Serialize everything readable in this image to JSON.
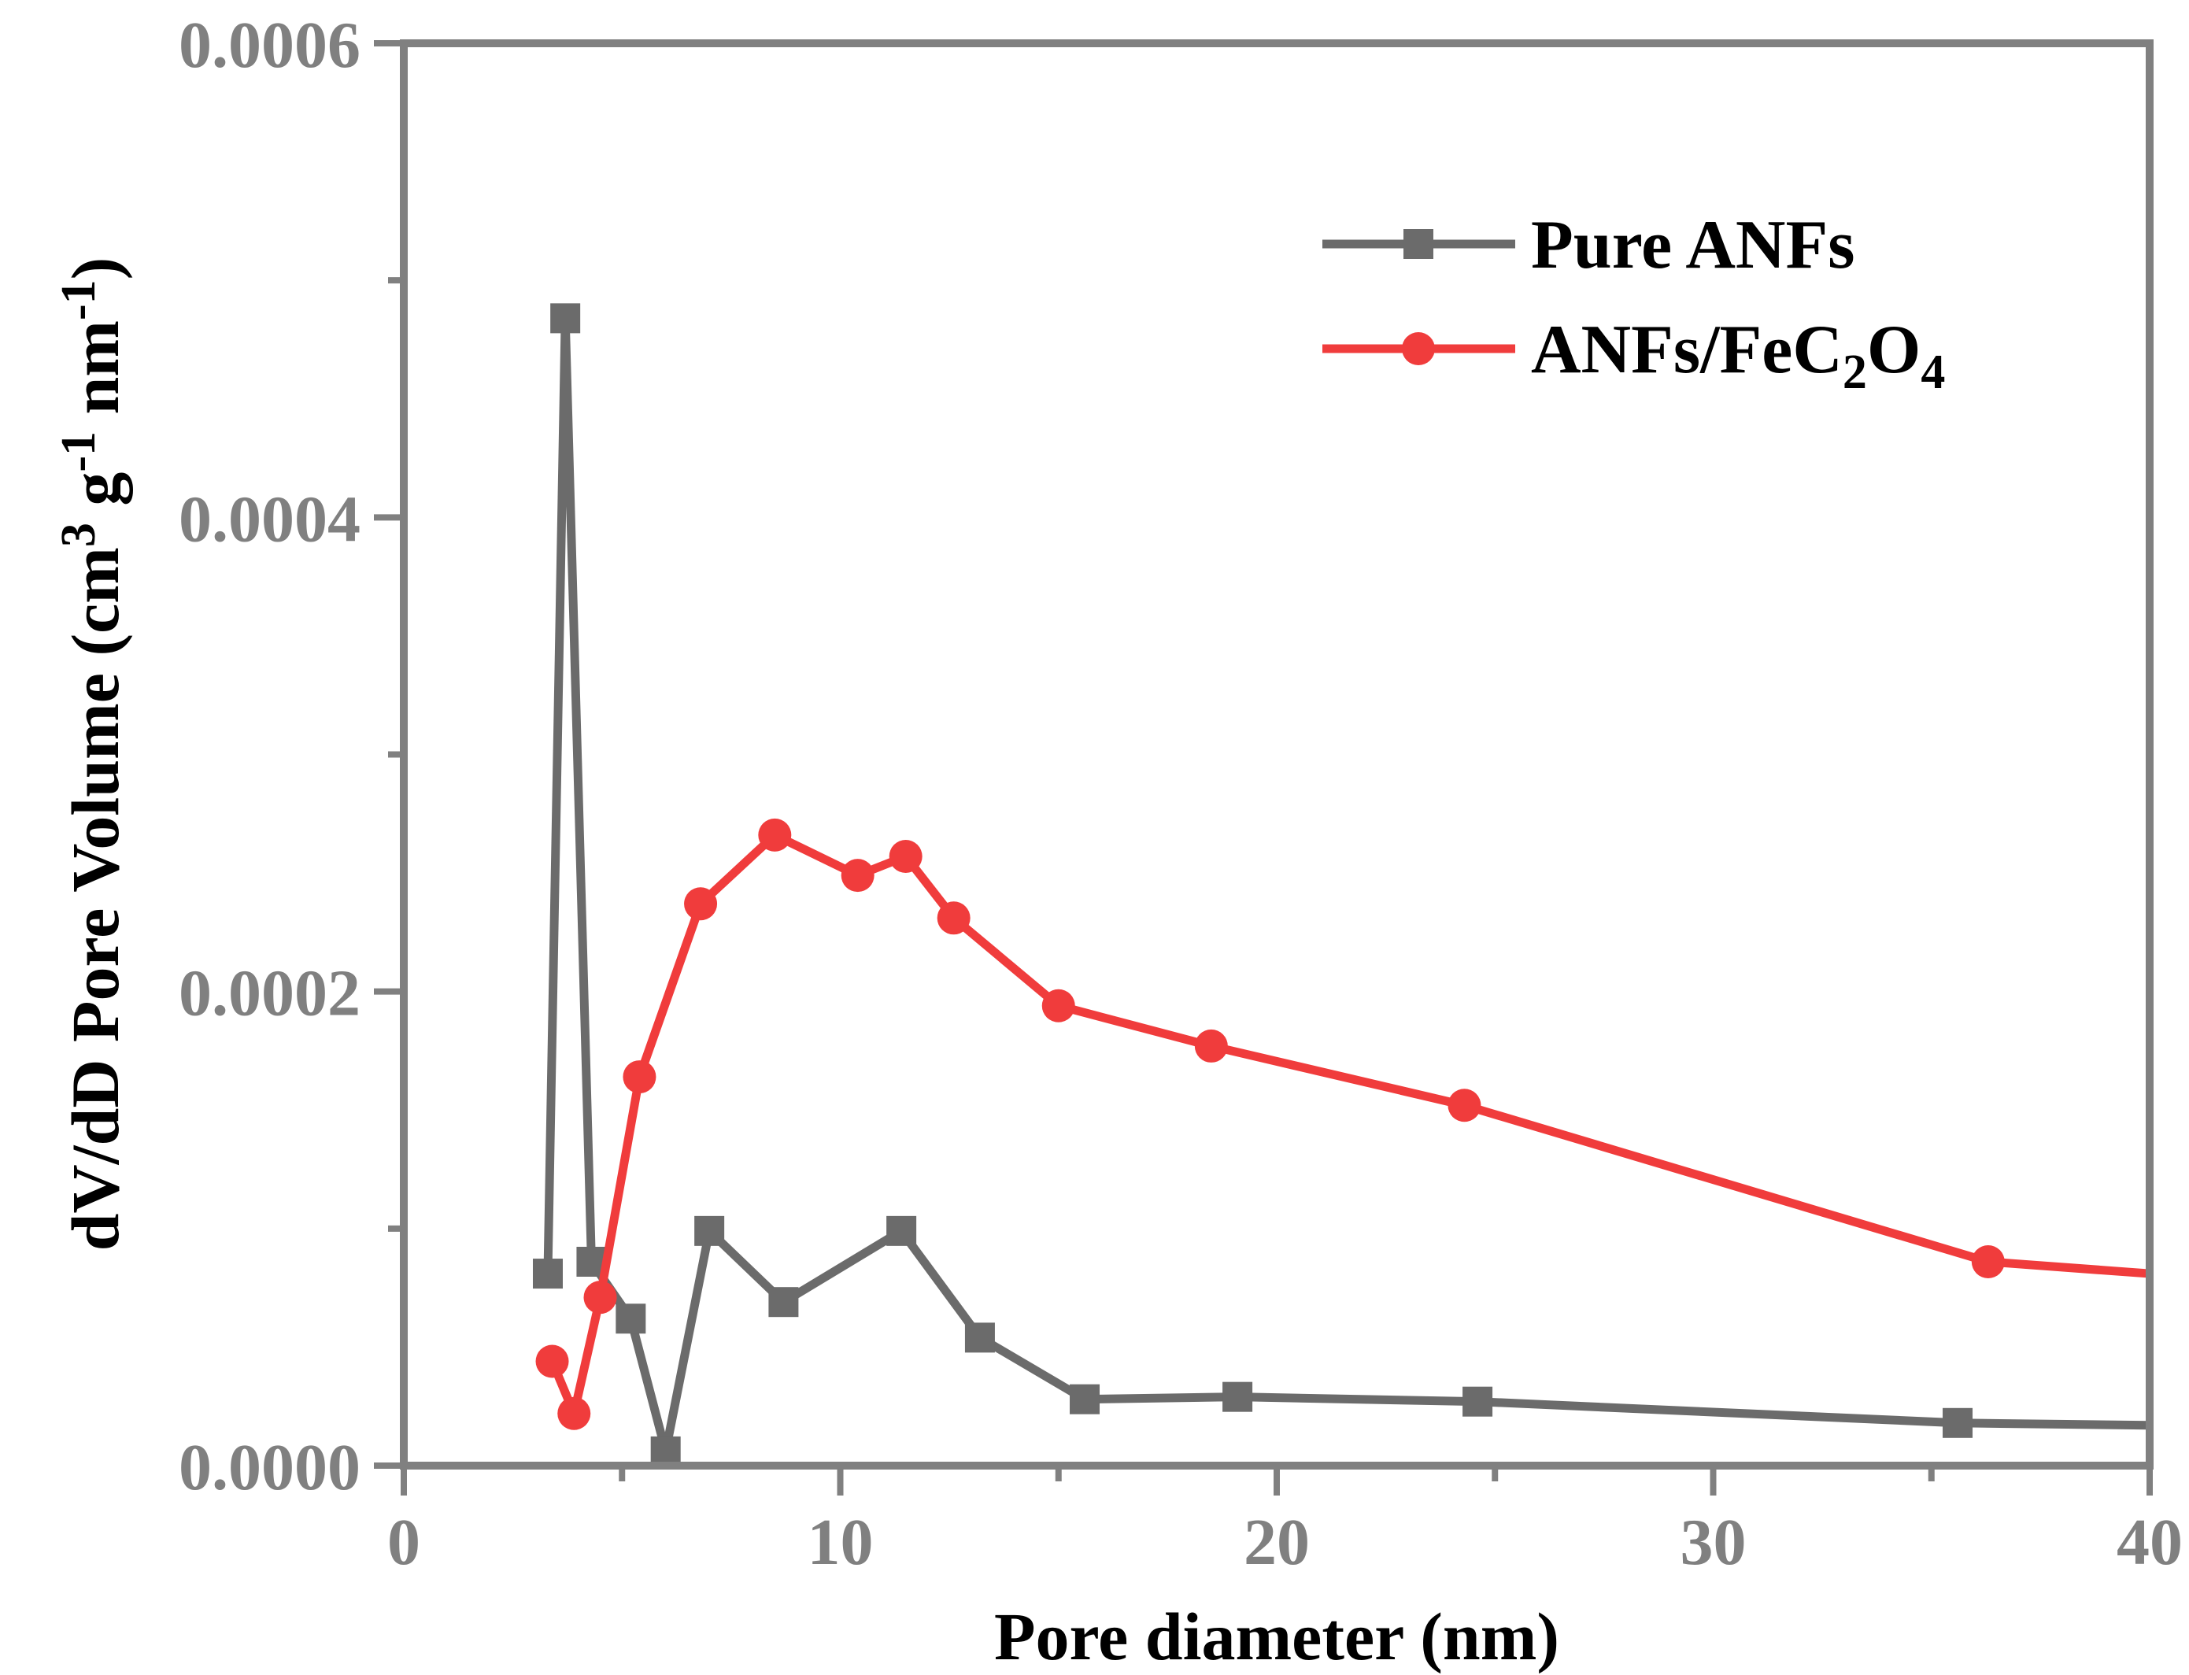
{
  "chart_data": {
    "type": "line",
    "title": "",
    "xlabel": "Pore diameter (nm)",
    "ylabel": {
      "parts": [
        "dV/dD Pore Volume (cm",
        "3",
        " g",
        "-1",
        " nm",
        "-1",
        ")"
      ]
    },
    "xlim": [
      0,
      40
    ],
    "ylim": [
      0,
      0.0006
    ],
    "x_ticks": [
      {
        "value": 0,
        "label": "0"
      },
      {
        "value": 10,
        "label": "10"
      },
      {
        "value": 20,
        "label": "20"
      },
      {
        "value": 30,
        "label": "30"
      },
      {
        "value": 40,
        "label": "40"
      }
    ],
    "y_ticks": [
      {
        "value": 0,
        "label": "0.0000"
      },
      {
        "value": 0.0002,
        "label": "0.0002"
      },
      {
        "value": 0.0004,
        "label": "0.0004"
      },
      {
        "value": 0.0006,
        "label": "0.0006"
      }
    ],
    "legend_position": "top-right",
    "series": [
      {
        "name": "Pure ANFs",
        "legend_parts": [
          {
            "t": "Pure ANFs"
          }
        ],
        "color": "#6b6b6b",
        "marker": "square",
        "x": [
          3.3,
          3.7,
          4.3,
          5.2,
          6.0,
          7.0,
          8.7,
          11.4,
          13.2,
          15.6,
          19.1,
          24.6,
          35.6,
          40.0
        ],
        "y": [
          8.1e-05,
          0.000484,
          8.6e-05,
          6.2e-05,
          6e-06,
          9.9e-05,
          6.9e-05,
          9.9e-05,
          5.4e-05,
          2.8e-05,
          2.9e-05,
          2.7e-05,
          1.8e-05,
          1.7e-05
        ],
        "marker_count": 13
      },
      {
        "name": "ANFs/FeC2O4",
        "legend_parts": [
          {
            "t": "ANFs/FeC"
          },
          {
            "t": "2",
            "sub": true
          },
          {
            "t": "O"
          },
          {
            "t": "4",
            "sub": true
          }
        ],
        "color": "#f03c3c",
        "marker": "circle",
        "x": [
          3.4,
          3.9,
          4.5,
          5.4,
          6.8,
          8.5,
          10.4,
          11.5,
          12.6,
          15.0,
          18.5,
          24.3,
          36.3,
          40.0
        ],
        "y": [
          4.4e-05,
          2.2e-05,
          7.1e-05,
          0.000164,
          0.000237,
          0.000266,
          0.000249,
          0.000257,
          0.000231,
          0.000194,
          0.000177,
          0.000152,
          8.6e-05,
          8.1e-05
        ],
        "marker_count": 13
      }
    ]
  },
  "colors": {
    "axis": "#808080",
    "tick_label": "#808080",
    "axis_title": "#000000"
  }
}
